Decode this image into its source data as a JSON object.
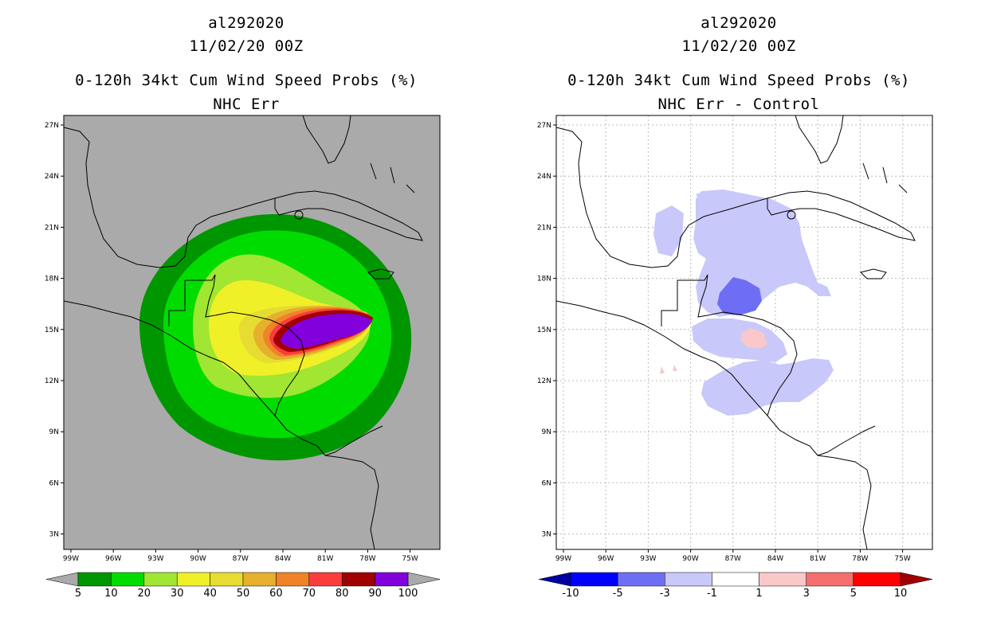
{
  "left_panel": {
    "storm_id": "al292020",
    "datetime": "11/02/20 00Z",
    "title": "0-120h 34kt Cum Wind Speed Probs (%)",
    "subtitle": "NHC Err",
    "background_color": "#aaaaaa",
    "colorbar": {
      "labels": [
        "5",
        "10",
        "20",
        "30",
        "40",
        "50",
        "60",
        "70",
        "80",
        "90",
        "100"
      ],
      "colors": [
        "#009600",
        "#00dc00",
        "#a0e632",
        "#f0f028",
        "#e6dc32",
        "#e6af2d",
        "#f08228",
        "#fa3c3c",
        "#a00000",
        "#8200dc"
      ],
      "end_arrow_color": "#aaaaaa"
    }
  },
  "right_panel": {
    "storm_id": "al292020",
    "datetime": "11/02/20 00Z",
    "title": "0-120h 34kt Cum Wind Speed Probs (%)",
    "subtitle": "NHC Err - Control",
    "background_color": "#ffffff",
    "colorbar": {
      "labels": [
        "-10",
        "-5",
        "-3",
        "-1",
        "1",
        "3",
        "5",
        "10"
      ],
      "colors": [
        "#0000ff",
        "#6e6ef5",
        "#c8c8fa",
        "#ffffff",
        "#fac8c8",
        "#f56e6e",
        "#ff0000"
      ],
      "left_arrow_color": "#0000a0",
      "right_arrow_color": "#a00000"
    }
  },
  "map_axes": {
    "lat_labels": [
      "27N",
      "24N",
      "21N",
      "18N",
      "15N",
      "12N",
      "9N",
      "6N",
      "3N"
    ],
    "lon_labels": [
      "99W",
      "96W",
      "93W",
      "90W",
      "87W",
      "84W",
      "81W",
      "78W",
      "75W"
    ]
  }
}
